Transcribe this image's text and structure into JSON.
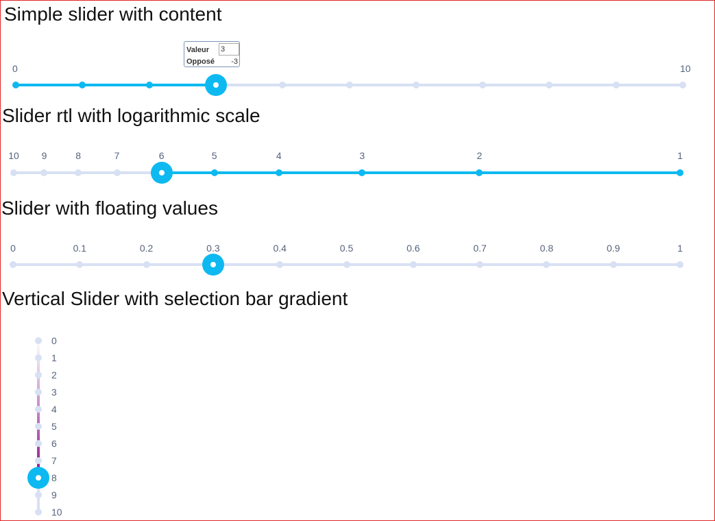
{
  "sliders": [
    {
      "id": "simple",
      "title": "Simple slider with content",
      "min": 0,
      "max": 10,
      "value": 3,
      "tick_labels": [
        "0",
        "10"
      ],
      "tooltip": {
        "value_label": "Valeur",
        "value": "3",
        "opposite_label": "Opposé",
        "opposite_value": "-3"
      },
      "selection_color": "#0db9f0"
    },
    {
      "id": "rtl-log",
      "title": "Slider rtl with logarithmic scale",
      "min": 1,
      "max": 10,
      "value": 6,
      "direction": "rtl",
      "scale": "logarithmic",
      "tick_labels": [
        "10",
        "9",
        "8",
        "7",
        "6",
        "5",
        "4",
        "3",
        "2",
        "1"
      ],
      "selection_color": "#0db9f0"
    },
    {
      "id": "floating",
      "title": "Slider with floating values",
      "min": 0,
      "max": 1,
      "step": 0.1,
      "value": 0.3,
      "tick_labels": [
        "0",
        "0.1",
        "0.2",
        "0.3",
        "0.4",
        "0.5",
        "0.6",
        "0.7",
        "0.8",
        "0.9",
        "1"
      ]
    },
    {
      "id": "vertical-gradient",
      "title": "Vertical Slider with selection bar gradient",
      "orientation": "vertical",
      "min": 0,
      "max": 10,
      "value": 8,
      "tick_labels": [
        "0",
        "1",
        "2",
        "3",
        "4",
        "5",
        "6",
        "7",
        "8",
        "9",
        "10"
      ],
      "gradient": {
        "start": "#ffffff",
        "end": "#8e0e8c"
      }
    }
  ],
  "colors": {
    "accent": "#0db9f0",
    "rail": "#d8e0f3",
    "tick_label": "#55637d",
    "frame_border": "#e02424"
  }
}
